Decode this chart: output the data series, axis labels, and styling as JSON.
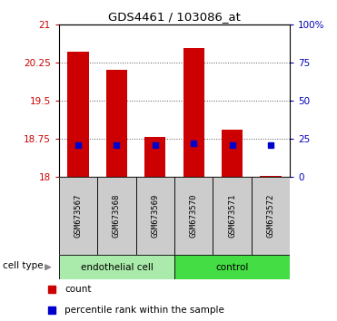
{
  "title": "GDS4461 / 103086_at",
  "samples": [
    "GSM673567",
    "GSM673568",
    "GSM673569",
    "GSM673570",
    "GSM673571",
    "GSM673572"
  ],
  "red_bar_tops": [
    20.45,
    20.1,
    18.78,
    20.52,
    18.92,
    18.02
  ],
  "blue_square_y": [
    18.62,
    18.62,
    18.62,
    18.66,
    18.62,
    18.62
  ],
  "bar_bottom": 18.0,
  "ylim_left": [
    18.0,
    21.0
  ],
  "ylim_right": [
    0,
    100
  ],
  "yticks_left": [
    18,
    18.75,
    19.5,
    20.25,
    21
  ],
  "ytick_labels_left": [
    "18",
    "18.75",
    "19.5",
    "20.25",
    "21"
  ],
  "yticks_right": [
    0,
    25,
    50,
    75,
    100
  ],
  "ytick_labels_right": [
    "0",
    "25",
    "50",
    "75",
    "100%"
  ],
  "cell_types": [
    {
      "label": "endothelial cell",
      "start": 0,
      "end": 3,
      "color": "#aaeaaa"
    },
    {
      "label": "control",
      "start": 3,
      "end": 6,
      "color": "#44dd44"
    }
  ],
  "cell_type_label": "cell type",
  "legend_items": [
    {
      "color": "#cc0000",
      "label": "count"
    },
    {
      "color": "#0000cc",
      "label": "percentile rank within the sample"
    }
  ],
  "bar_color": "#cc0000",
  "blue_color": "#0000cc",
  "axis_color_left": "#cc0000",
  "axis_color_right": "#0000bb",
  "dotted_grid_color": "#555555",
  "background_plot": "#ffffff",
  "sample_bg_color": "#cccccc",
  "bar_width": 0.55
}
